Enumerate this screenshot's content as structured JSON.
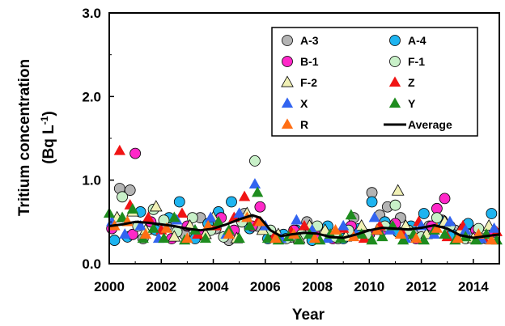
{
  "chart_data": {
    "type": "scatter",
    "xlabel": "Year",
    "ylabel_line1": "Tritium concentration",
    "ylabel_line2": "(Bq L",
    "ylabel_sup": "-1",
    "ylabel_close": ")",
    "xlim": [
      2000,
      2015
    ],
    "ylim": [
      0,
      3
    ],
    "x_ticks": [
      "2000",
      "2002",
      "2004",
      "2006",
      "2008",
      "2010",
      "2012",
      "2014"
    ],
    "y_ticks": [
      "0.0",
      "1.0",
      "2.0",
      "3.0"
    ],
    "grid": false,
    "legend_position": "top-right",
    "series": [
      {
        "name": "A-3",
        "marker": "circle",
        "color": "#b4b4b4",
        "points": [
          [
            2000.4,
            0.9
          ],
          [
            2000.8,
            0.88
          ],
          [
            2001.3,
            0.3
          ],
          [
            2002.2,
            0.45
          ],
          [
            2002.9,
            0.35
          ],
          [
            2003.5,
            0.55
          ],
          [
            2004.1,
            0.42
          ],
          [
            2004.6,
            0.28
          ],
          [
            2005.2,
            0.6
          ],
          [
            2005.7,
            0.45
          ],
          [
            2006.3,
            0.35
          ],
          [
            2007.0,
            0.32
          ],
          [
            2007.6,
            0.5
          ],
          [
            2008.2,
            0.4
          ],
          [
            2008.8,
            0.3
          ],
          [
            2009.4,
            0.55
          ],
          [
            2010.1,
            0.85
          ],
          [
            2010.4,
            0.58
          ],
          [
            2010.7,
            0.68
          ],
          [
            2011.2,
            0.55
          ],
          [
            2011.7,
            0.35
          ],
          [
            2012.3,
            0.45
          ],
          [
            2012.8,
            0.52
          ],
          [
            2013.3,
            0.4
          ],
          [
            2013.9,
            0.35
          ],
          [
            2014.5,
            0.3
          ]
        ]
      },
      {
        "name": "A-4",
        "marker": "circle",
        "color": "#1eb4f0",
        "points": [
          [
            2000.2,
            0.28
          ],
          [
            2000.7,
            0.32
          ],
          [
            2001.2,
            0.62
          ],
          [
            2001.8,
            0.4
          ],
          [
            2002.3,
            0.55
          ],
          [
            2002.7,
            0.74
          ],
          [
            2003.3,
            0.3
          ],
          [
            2003.8,
            0.48
          ],
          [
            2004.2,
            0.62
          ],
          [
            2004.7,
            0.74
          ],
          [
            2005.0,
            0.55
          ],
          [
            2005.4,
            0.42
          ],
          [
            2006.1,
            0.3
          ],
          [
            2006.7,
            0.35
          ],
          [
            2007.2,
            0.4
          ],
          [
            2007.8,
            0.28
          ],
          [
            2008.4,
            0.45
          ],
          [
            2009.0,
            0.3
          ],
          [
            2009.6,
            0.42
          ],
          [
            2010.1,
            0.74
          ],
          [
            2010.6,
            0.5
          ],
          [
            2011.1,
            0.38
          ],
          [
            2011.6,
            0.45
          ],
          [
            2012.1,
            0.6
          ],
          [
            2012.7,
            0.52
          ],
          [
            2013.2,
            0.35
          ],
          [
            2013.8,
            0.48
          ],
          [
            2014.3,
            0.3
          ],
          [
            2014.7,
            0.6
          ]
        ]
      },
      {
        "name": "B-1",
        "marker": "circle",
        "color": "#ff28c8",
        "points": [
          [
            2000.1,
            0.42
          ],
          [
            2000.9,
            0.35
          ],
          [
            2001.0,
            1.32
          ],
          [
            2001.6,
            0.5
          ],
          [
            2002.4,
            0.3
          ],
          [
            2003.0,
            0.45
          ],
          [
            2003.6,
            0.35
          ],
          [
            2004.3,
            0.55
          ],
          [
            2004.8,
            0.4
          ],
          [
            2005.5,
            0.45
          ],
          [
            2005.8,
            0.68
          ],
          [
            2006.4,
            0.32
          ],
          [
            2007.1,
            0.4
          ],
          [
            2007.9,
            0.35
          ],
          [
            2008.6,
            0.3
          ],
          [
            2009.3,
            0.45
          ],
          [
            2010.0,
            0.35
          ],
          [
            2010.5,
            0.4
          ],
          [
            2011.0,
            0.48
          ],
          [
            2011.8,
            0.3
          ],
          [
            2012.4,
            0.45
          ],
          [
            2012.6,
            0.66
          ],
          [
            2012.9,
            0.78
          ],
          [
            2013.6,
            0.35
          ],
          [
            2014.1,
            0.4
          ],
          [
            2014.8,
            0.38
          ]
        ]
      },
      {
        "name": "F-1",
        "marker": "circle",
        "color": "#c8f0c8",
        "points": [
          [
            2000.5,
            0.8
          ],
          [
            2001.1,
            0.45
          ],
          [
            2001.7,
            0.65
          ],
          [
            2002.1,
            0.52
          ],
          [
            2002.6,
            0.38
          ],
          [
            2003.2,
            0.55
          ],
          [
            2003.9,
            0.4
          ],
          [
            2004.4,
            0.32
          ],
          [
            2005.1,
            0.5
          ],
          [
            2005.6,
            1.23
          ],
          [
            2006.2,
            0.4
          ],
          [
            2006.8,
            0.3
          ],
          [
            2007.4,
            0.35
          ],
          [
            2008.0,
            0.45
          ],
          [
            2008.7,
            0.32
          ],
          [
            2009.2,
            0.4
          ],
          [
            2009.9,
            0.35
          ],
          [
            2010.6,
            0.45
          ],
          [
            2011.0,
            0.7
          ],
          [
            2011.5,
            0.4
          ],
          [
            2012.0,
            0.32
          ],
          [
            2012.6,
            0.55
          ],
          [
            2013.1,
            0.45
          ],
          [
            2013.7,
            0.3
          ],
          [
            2014.2,
            0.42
          ]
        ]
      },
      {
        "name": "F-2",
        "marker": "triangle",
        "color": "#f0f0b4",
        "points": [
          [
            2000.3,
            0.55
          ],
          [
            2000.9,
            0.62
          ],
          [
            2001.4,
            0.4
          ],
          [
            2001.8,
            0.68
          ],
          [
            2002.5,
            0.32
          ],
          [
            2003.1,
            0.45
          ],
          [
            2003.7,
            0.35
          ],
          [
            2004.0,
            0.55
          ],
          [
            2004.9,
            0.3
          ],
          [
            2005.3,
            0.6
          ],
          [
            2005.9,
            0.4
          ],
          [
            2006.5,
            0.35
          ],
          [
            2007.3,
            0.3
          ],
          [
            2007.7,
            0.45
          ],
          [
            2008.3,
            0.4
          ],
          [
            2009.1,
            0.32
          ],
          [
            2009.7,
            0.45
          ],
          [
            2010.3,
            0.4
          ],
          [
            2011.1,
            0.87
          ],
          [
            2011.4,
            0.45
          ],
          [
            2012.2,
            0.35
          ],
          [
            2012.9,
            0.5
          ],
          [
            2013.5,
            0.4
          ],
          [
            2014.0,
            0.3
          ],
          [
            2014.6,
            0.45
          ]
        ]
      },
      {
        "name": "Z",
        "marker": "triangle",
        "color": "#f01414",
        "points": [
          [
            2000.4,
            1.35
          ],
          [
            2000.8,
            0.7
          ],
          [
            2001.5,
            0.55
          ],
          [
            2002.0,
            0.4
          ],
          [
            2002.8,
            0.6
          ],
          [
            2003.4,
            0.35
          ],
          [
            2004.1,
            0.45
          ],
          [
            2004.8,
            0.55
          ],
          [
            2005.2,
            0.8
          ],
          [
            2005.7,
            0.5
          ],
          [
            2006.3,
            0.3
          ],
          [
            2007.0,
            0.38
          ],
          [
            2007.5,
            0.45
          ],
          [
            2008.5,
            0.35
          ],
          [
            2009.0,
            0.42
          ],
          [
            2009.8,
            0.3
          ],
          [
            2010.4,
            0.45
          ],
          [
            2011.3,
            0.35
          ],
          [
            2011.9,
            0.5
          ],
          [
            2012.5,
            0.4
          ],
          [
            2013.0,
            0.32
          ],
          [
            2013.6,
            0.45
          ],
          [
            2014.4,
            0.3
          ],
          [
            2014.9,
            0.38
          ]
        ]
      },
      {
        "name": "X",
        "marker": "triangle",
        "color": "#3264f0",
        "points": [
          [
            2000.1,
            0.5
          ],
          [
            2000.6,
            0.35
          ],
          [
            2001.2,
            0.45
          ],
          [
            2001.9,
            0.3
          ],
          [
            2002.6,
            0.52
          ],
          [
            2003.3,
            0.4
          ],
          [
            2003.9,
            0.55
          ],
          [
            2004.5,
            0.35
          ],
          [
            2005.0,
            0.6
          ],
          [
            2005.6,
            0.95
          ],
          [
            2006.0,
            0.45
          ],
          [
            2006.6,
            0.3
          ],
          [
            2007.2,
            0.52
          ],
          [
            2007.8,
            0.4
          ],
          [
            2008.4,
            0.3
          ],
          [
            2009.0,
            0.45
          ],
          [
            2009.5,
            0.35
          ],
          [
            2010.2,
            0.55
          ],
          [
            2010.8,
            0.4
          ],
          [
            2011.4,
            0.3
          ],
          [
            2012.0,
            0.45
          ],
          [
            2012.5,
            0.35
          ],
          [
            2013.1,
            0.5
          ],
          [
            2013.7,
            0.4
          ],
          [
            2014.3,
            0.3
          ],
          [
            2014.8,
            0.42
          ]
        ]
      },
      {
        "name": "Y",
        "marker": "triangle",
        "color": "#1e8c1e",
        "points": [
          [
            2000.0,
            0.6
          ],
          [
            2000.5,
            0.55
          ],
          [
            2000.9,
            0.65
          ],
          [
            2001.3,
            0.3
          ],
          [
            2001.7,
            0.42
          ],
          [
            2002.1,
            0.3
          ],
          [
            2002.5,
            0.55
          ],
          [
            2002.9,
            0.28
          ],
          [
            2003.3,
            0.4
          ],
          [
            2003.7,
            0.3
          ],
          [
            2004.2,
            0.5
          ],
          [
            2004.6,
            0.4
          ],
          [
            2005.0,
            0.3
          ],
          [
            2005.4,
            0.45
          ],
          [
            2005.7,
            0.85
          ],
          [
            2006.1,
            0.3
          ],
          [
            2006.5,
            0.28
          ],
          [
            2006.9,
            0.32
          ],
          [
            2007.3,
            0.28
          ],
          [
            2007.7,
            0.35
          ],
          [
            2008.1,
            0.28
          ],
          [
            2008.5,
            0.35
          ],
          [
            2008.9,
            0.3
          ],
          [
            2009.3,
            0.58
          ],
          [
            2009.7,
            0.35
          ],
          [
            2010.1,
            0.28
          ],
          [
            2010.5,
            0.32
          ],
          [
            2010.9,
            0.45
          ],
          [
            2011.3,
            0.28
          ],
          [
            2011.7,
            0.35
          ],
          [
            2012.1,
            0.28
          ],
          [
            2012.5,
            0.4
          ],
          [
            2012.9,
            0.35
          ],
          [
            2013.3,
            0.28
          ],
          [
            2013.7,
            0.32
          ],
          [
            2014.1,
            0.28
          ],
          [
            2014.5,
            0.35
          ],
          [
            2014.9,
            0.28
          ]
        ]
      },
      {
        "name": "R",
        "marker": "triangle",
        "color": "#ff6e14",
        "points": [
          [
            2000.2,
            0.45
          ],
          [
            2000.7,
            0.5
          ],
          [
            2001.4,
            0.35
          ],
          [
            2002.2,
            0.42
          ],
          [
            2003.0,
            0.3
          ],
          [
            2003.8,
            0.45
          ],
          [
            2004.6,
            0.35
          ],
          [
            2005.3,
            0.55
          ],
          [
            2005.8,
            0.5
          ],
          [
            2006.4,
            0.3
          ],
          [
            2007.1,
            0.35
          ],
          [
            2007.9,
            0.3
          ],
          [
            2008.7,
            0.4
          ],
          [
            2009.4,
            0.32
          ],
          [
            2010.3,
            0.4
          ],
          [
            2011.2,
            0.35
          ],
          [
            2011.8,
            0.3
          ],
          [
            2012.6,
            0.42
          ],
          [
            2013.4,
            0.3
          ],
          [
            2014.2,
            0.35
          ],
          [
            2014.7,
            0.28
          ]
        ]
      },
      {
        "name": "Average",
        "marker": "line",
        "color": "#000000",
        "points": [
          [
            2000.0,
            0.45
          ],
          [
            2000.5,
            0.47
          ],
          [
            2001.0,
            0.5
          ],
          [
            2001.5,
            0.49
          ],
          [
            2002.0,
            0.47
          ],
          [
            2002.5,
            0.45
          ],
          [
            2003.0,
            0.42
          ],
          [
            2003.5,
            0.4
          ],
          [
            2004.0,
            0.42
          ],
          [
            2004.5,
            0.47
          ],
          [
            2005.0,
            0.53
          ],
          [
            2005.5,
            0.58
          ],
          [
            2005.8,
            0.55
          ],
          [
            2006.2,
            0.4
          ],
          [
            2006.6,
            0.33
          ],
          [
            2007.0,
            0.35
          ],
          [
            2007.5,
            0.37
          ],
          [
            2008.0,
            0.36
          ],
          [
            2008.5,
            0.32
          ],
          [
            2009.0,
            0.31
          ],
          [
            2009.5,
            0.35
          ],
          [
            2010.0,
            0.4
          ],
          [
            2010.5,
            0.43
          ],
          [
            2011.0,
            0.42
          ],
          [
            2011.5,
            0.41
          ],
          [
            2012.0,
            0.43
          ],
          [
            2012.5,
            0.46
          ],
          [
            2013.0,
            0.42
          ],
          [
            2013.5,
            0.34
          ],
          [
            2014.0,
            0.31
          ],
          [
            2014.5,
            0.33
          ],
          [
            2015.0,
            0.35
          ]
        ]
      }
    ]
  }
}
